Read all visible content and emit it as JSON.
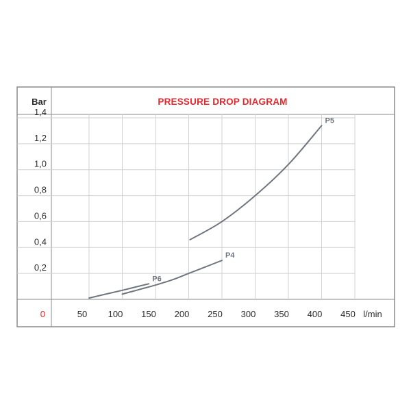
{
  "chart_data": {
    "type": "line",
    "title": "PRESSURE DROP DIAGRAM",
    "ylabel": "Bar",
    "xlabel": "l/min",
    "y_origin_label": "0",
    "xlim": [
      25,
      475
    ],
    "ylim": [
      0,
      1.4
    ],
    "x_ticks": [
      {
        "value": 50,
        "label": "50"
      },
      {
        "value": 100,
        "label": "100"
      },
      {
        "value": 150,
        "label": "150"
      },
      {
        "value": 200,
        "label": "200"
      },
      {
        "value": 250,
        "label": "250"
      },
      {
        "value": 300,
        "label": "300"
      },
      {
        "value": 350,
        "label": "350"
      },
      {
        "value": 400,
        "label": "400"
      },
      {
        "value": 450,
        "label": "450"
      }
    ],
    "y_ticks": [
      {
        "value": 0.2,
        "label": "0,2"
      },
      {
        "value": 0.4,
        "label": "0,4"
      },
      {
        "value": 0.6,
        "label": "0,6"
      },
      {
        "value": 0.8,
        "label": "0,8"
      },
      {
        "value": 1.0,
        "label": "1,0"
      },
      {
        "value": 1.2,
        "label": "1,2"
      },
      {
        "value": 1.4,
        "label": "1,4"
      }
    ],
    "grid": true,
    "series": [
      {
        "name": "P6",
        "x": [
          50,
          75,
          100,
          120,
          140
        ],
        "y": [
          0.01,
          0.04,
          0.07,
          0.095,
          0.12
        ]
      },
      {
        "name": "P4",
        "x": [
          100,
          125,
          150,
          175,
          200,
          225,
          250
        ],
        "y": [
          0.04,
          0.075,
          0.11,
          0.15,
          0.2,
          0.25,
          0.3
        ]
      },
      {
        "name": "P5",
        "x": [
          202,
          250,
          300,
          350,
          400
        ],
        "y": [
          0.46,
          0.6,
          0.8,
          1.04,
          1.34
        ]
      }
    ]
  }
}
